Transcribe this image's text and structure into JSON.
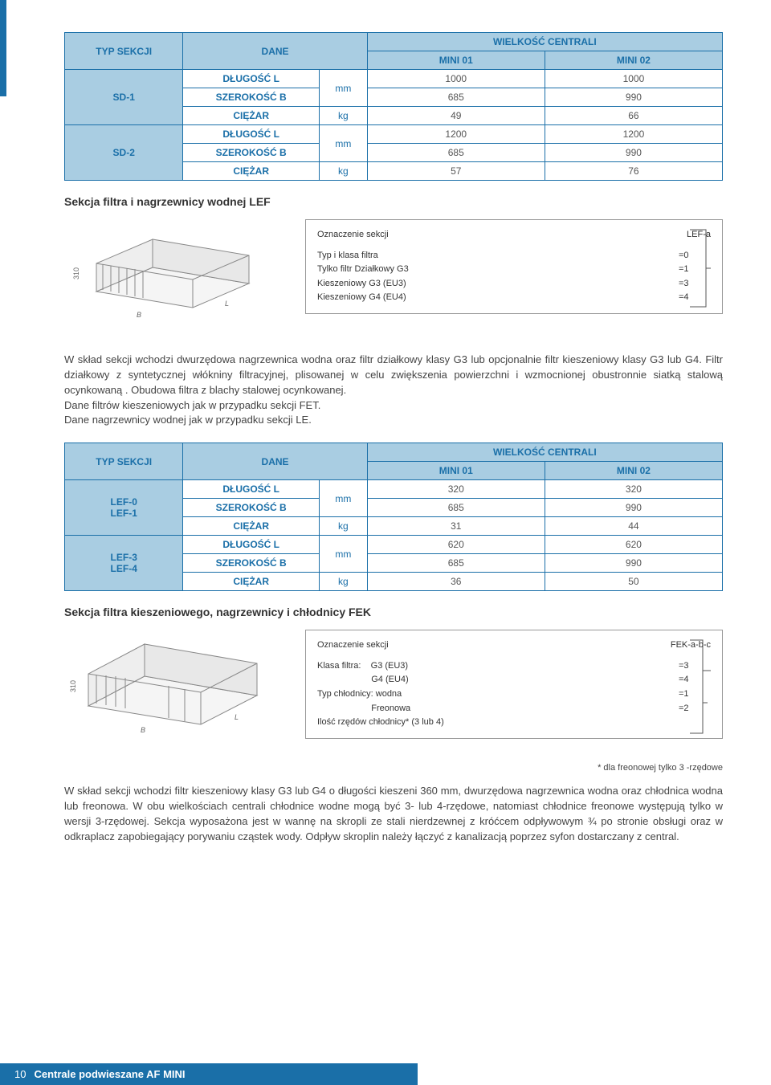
{
  "table1": {
    "header": {
      "c1": "TYP SEKCJI",
      "c2": "DANE",
      "c3": "WIELKOŚĆ CENTRALI",
      "c3a": "MINI 01",
      "c3b": "MINI 02"
    },
    "groups": [
      {
        "type": "SD-1",
        "rows": [
          {
            "param": "DŁUGOŚĆ L",
            "unit": "mm",
            "v1": "1000",
            "v2": "1000",
            "unitRowspan": 2
          },
          {
            "param": "SZEROKOŚĆ B",
            "unit": "",
            "v1": "685",
            "v2": "990"
          },
          {
            "param": "CIĘŻAR",
            "unit": "kg",
            "v1": "49",
            "v2": "66"
          }
        ]
      },
      {
        "type": "SD-2",
        "rows": [
          {
            "param": "DŁUGOŚĆ L",
            "unit": "mm",
            "v1": "1200",
            "v2": "1200",
            "unitRowspan": 2
          },
          {
            "param": "SZEROKOŚĆ B",
            "unit": "",
            "v1": "685",
            "v2": "990"
          },
          {
            "param": "CIĘŻAR",
            "unit": "kg",
            "v1": "57",
            "v2": "76"
          }
        ]
      }
    ]
  },
  "section1": {
    "title": "Sekcja filtra i nagrzewnicy wodnej LEF",
    "legend": {
      "header": "Oznaczenie sekcji",
      "code": "LEF-a",
      "lines": [
        {
          "label": "Typ i klasa filtra",
          "val": "=0"
        },
        {
          "label": "Tylko filtr Działkowy G3",
          "val": "=1"
        },
        {
          "label": "Kieszeniowy G3 (EU3)",
          "val": "=3"
        },
        {
          "label": "Kieszeniowy G4 (EU4)",
          "val": "=4"
        }
      ]
    },
    "body": "W skład sekcji wchodzi dwurzędowa nagrzewnica wodna oraz filtr działkowy klasy G3 lub opcjonalnie filtr kieszeniowy klasy G3 lub G4. Filtr działkowy z syntetycznej włókniny filtracyjnej, plisowanej w celu zwiększenia powierzchni i wzmocnionej obustronnie siatką stalową ocynkowaną . Obudowa filtra z blachy stalowej ocynkowanej.",
    "body2": "Dane filtrów kieszeniowych jak w przypadku sekcji FET.",
    "body3": "Dane nagrzewnicy wodnej jak w przypadku sekcji LE."
  },
  "table2": {
    "header": {
      "c1": "TYP SEKCJI",
      "c2": "DANE",
      "c3": "WIELKOŚĆ CENTRALI",
      "c3a": "MINI 01",
      "c3b": "MINI 02"
    },
    "groups": [
      {
        "type": "LEF-0\nLEF-1",
        "rows": [
          {
            "param": "DŁUGOŚĆ L",
            "unit": "mm",
            "v1": "320",
            "v2": "320",
            "unitRowspan": 2
          },
          {
            "param": "SZEROKOŚĆ B",
            "unit": "",
            "v1": "685",
            "v2": "990"
          },
          {
            "param": "CIĘŻAR",
            "unit": "kg",
            "v1": "31",
            "v2": "44"
          }
        ]
      },
      {
        "type": "LEF-3\nLEF-4",
        "rows": [
          {
            "param": "DŁUGOŚĆ L",
            "unit": "mm",
            "v1": "620",
            "v2": "620",
            "unitRowspan": 2
          },
          {
            "param": "SZEROKOŚĆ B",
            "unit": "",
            "v1": "685",
            "v2": "990"
          },
          {
            "param": "CIĘŻAR",
            "unit": "kg",
            "v1": "36",
            "v2": "50"
          }
        ]
      }
    ]
  },
  "section2": {
    "title": "Sekcja filtra kieszeniowego, nagrzewnicy i chłodnicy FEK",
    "legend": {
      "header": "Oznaczenie sekcji",
      "code": "FEK-a-b-c",
      "lines": [
        {
          "label": "Klasa filtra:    G3 (EU3)",
          "val": "=3"
        },
        {
          "label": "                      G4 (EU4)",
          "val": "=4"
        },
        {
          "label": "Typ chłodnicy: wodna",
          "val": "=1"
        },
        {
          "label": "                      Freonowa",
          "val": "=2"
        },
        {
          "label": "Ilość rzędów chłodnicy* (3 lub 4)",
          "val": ""
        }
      ]
    },
    "footnote": "* dla freonowej tylko 3 -rzędowe",
    "body": "W skład sekcji wchodzi filtr kieszeniowy klasy G3 lub G4 o długości kieszeni 360 mm, dwurzędowa nagrzewnica wodna oraz chłodnica wodna lub freonowa. W obu wielkościach centrali chłodnice wodne mogą być 3- lub 4-rzędowe, natomiast chłodnice freonowe występują tylko w wersji 3-rzędowej. Sekcja wyposażona jest w wannę na skropli ze stali nierdzewnej z króćcem odpływowym ¾ po stronie obsługi oraz w odkraplacz zapobiegający porywaniu cząstek wody. Odpływ skroplin należy łączyć z kanalizacją poprzez syfon dostarczany z central."
  },
  "footer": {
    "page": "10",
    "title": "Centrale podwieszane AF MINI"
  },
  "diagram": {
    "dim_label": "310"
  },
  "colors": {
    "brand": "#1a6fa8",
    "tint": "#a9cde2",
    "text": "#333333",
    "border": "#999999"
  }
}
